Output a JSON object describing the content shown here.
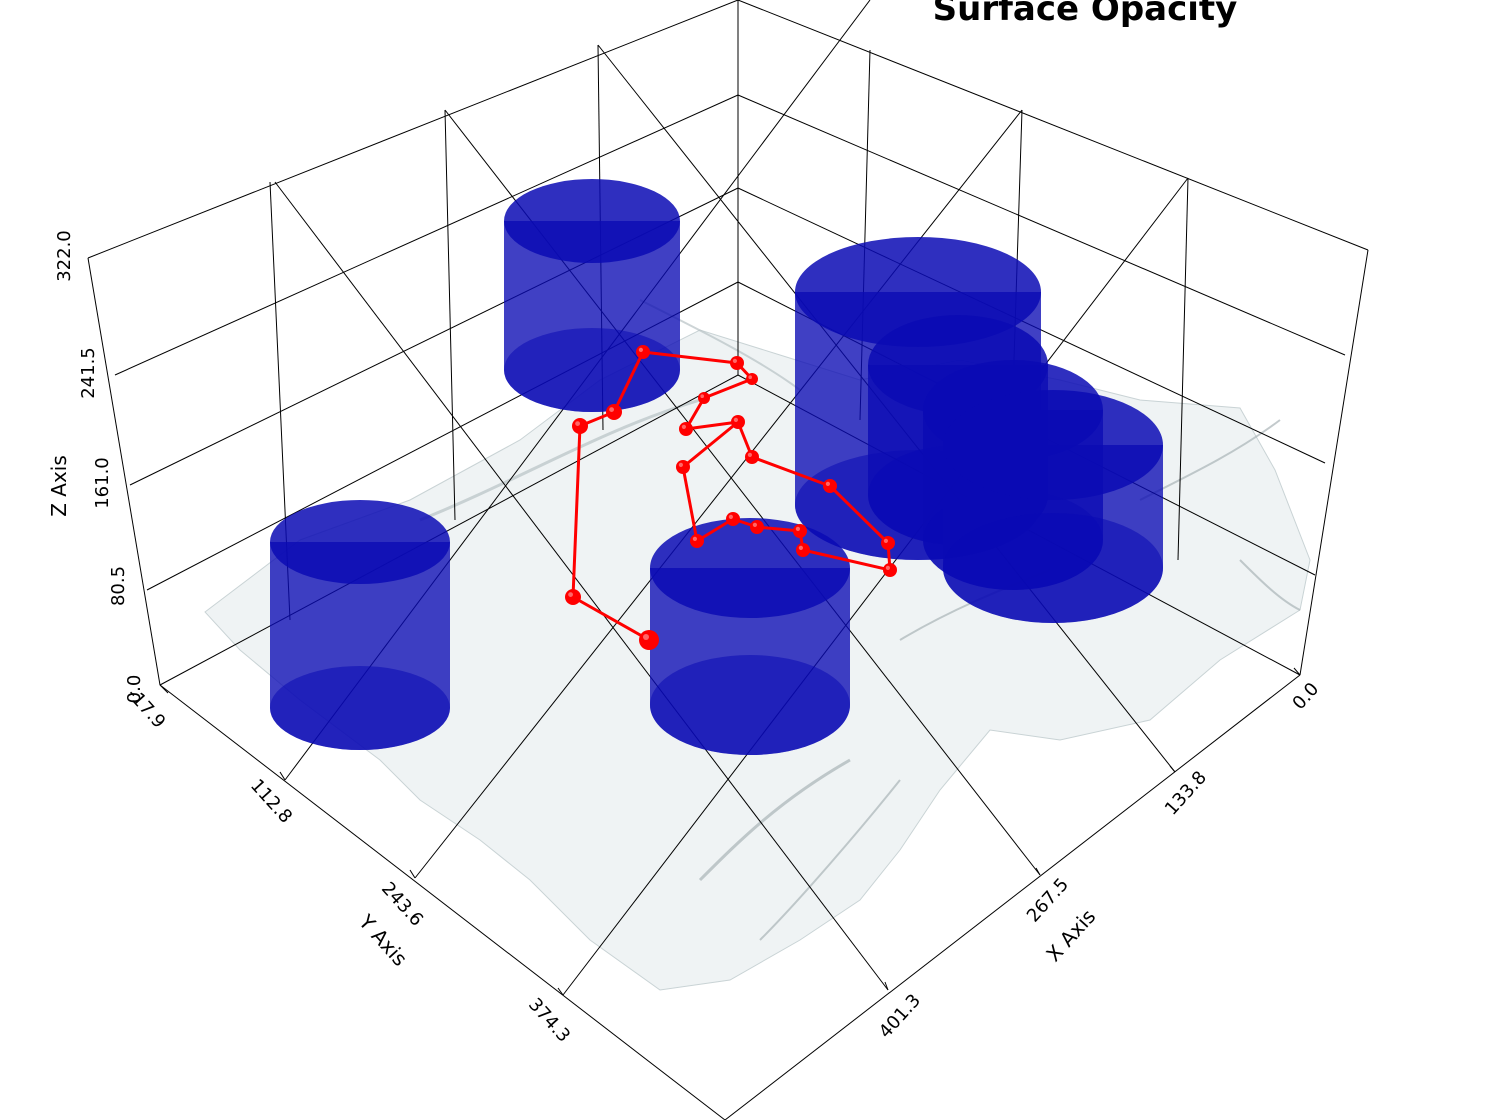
{
  "title": "Surface Opacity",
  "axes": {
    "x": {
      "label": "X Axis",
      "ticks": [
        "0.0",
        "133.8",
        "267.5",
        "401.3"
      ]
    },
    "y": {
      "label": "Y Axis",
      "ticks": [
        "-17.9",
        "112.8",
        "243.6",
        "374.3"
      ]
    },
    "z": {
      "label": "Z Axis",
      "ticks": [
        "0.0",
        "80.5",
        "161.0",
        "241.5",
        "322.0"
      ]
    }
  },
  "colors": {
    "cylinder": "#0a0ab4",
    "path": "#ff0000",
    "terrain": "#e9eff0",
    "grid": "#000000"
  },
  "objects": {
    "cylinder_count": 7,
    "path_node_count": 24,
    "terrain": "semi-transparent surface"
  }
}
